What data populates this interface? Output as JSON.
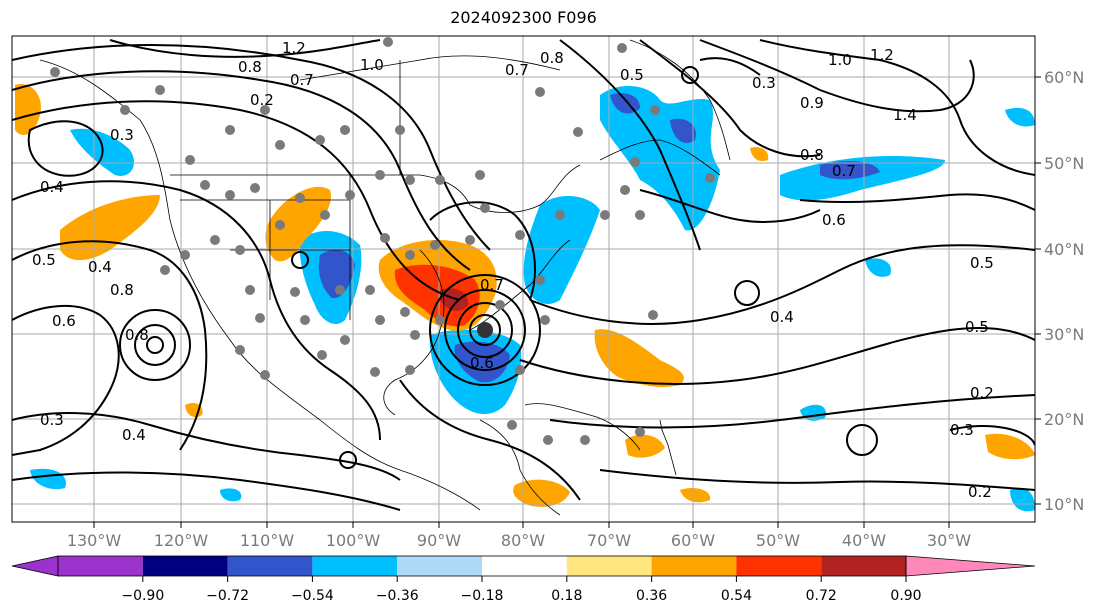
{
  "title": "2024092300 F096",
  "lon_labels": [
    "130°W",
    "120°W",
    "110°W",
    "100°W",
    "90°W",
    "80°W",
    "70°W",
    "60°W",
    "50°W",
    "40°W",
    "30°W"
  ],
  "lat_labels": [
    "60°N",
    "50°N",
    "40°N",
    "30°N",
    "20°N",
    "10°N"
  ],
  "colorbar": {
    "colors": [
      "#9933cc",
      "#000080",
      "#3355cc",
      "#00bfff",
      "#add8f6",
      "#ffffff",
      "#ffe680",
      "#ffa500",
      "#ff3300",
      "#b22222",
      "#ff88bb"
    ],
    "under_color": "#9933cc",
    "over_color": "#ff88bb",
    "ticks": [
      "−0.90",
      "−0.72",
      "−0.54",
      "−0.36",
      "−0.18",
      "0.18",
      "0.36",
      "0.54",
      "0.72",
      "0.90"
    ]
  },
  "contour_labels": [
    {
      "text": "1.2"
    },
    {
      "text": "0.8"
    },
    {
      "text": "0.7"
    },
    {
      "text": "0.2"
    },
    {
      "text": "1.0"
    },
    {
      "text": "0.8"
    },
    {
      "text": "0.7"
    },
    {
      "text": "0.5"
    },
    {
      "text": "0.3"
    },
    {
      "text": "0.9"
    },
    {
      "text": "1.0"
    },
    {
      "text": "1.2"
    },
    {
      "text": "1.4"
    },
    {
      "text": "0.8"
    },
    {
      "text": "0.7"
    },
    {
      "text": "0.6"
    },
    {
      "text": "0.4"
    },
    {
      "text": "0.5"
    },
    {
      "text": "0.5"
    },
    {
      "text": "0.8"
    },
    {
      "text": "0.6"
    },
    {
      "text": "0.8"
    },
    {
      "text": "0.4"
    },
    {
      "text": "0.3"
    },
    {
      "text": "0.7"
    },
    {
      "text": "0.6"
    },
    {
      "text": "0.4"
    },
    {
      "text": "0.5"
    },
    {
      "text": "0.2"
    },
    {
      "text": "0.3"
    },
    {
      "text": "0.2"
    },
    {
      "text": "0.4"
    },
    {
      "text": "0.3"
    }
  ]
}
